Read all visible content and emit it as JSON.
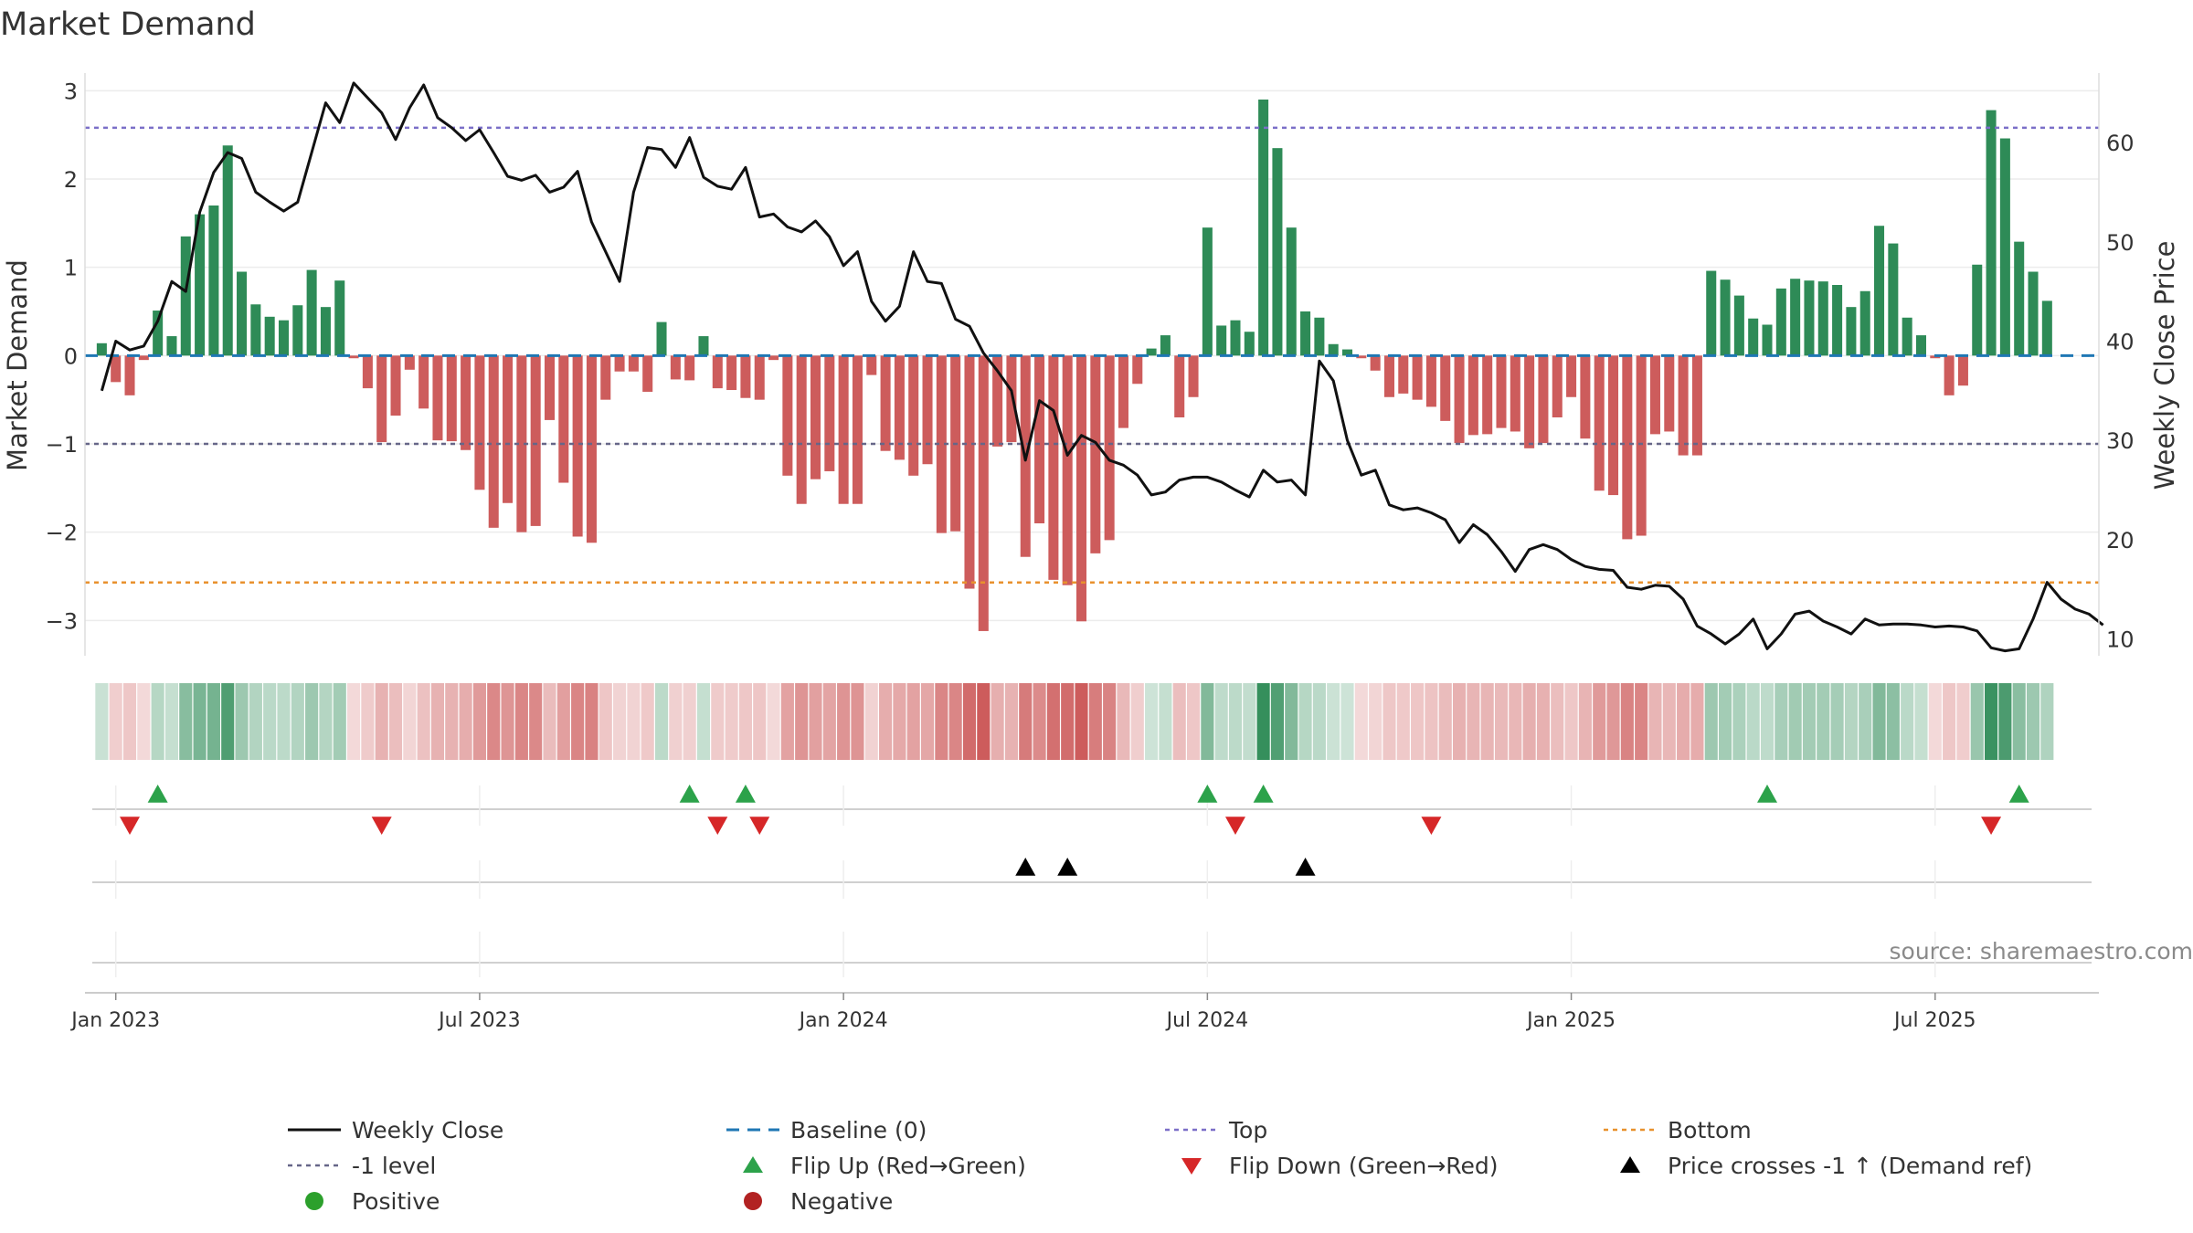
{
  "chart_data": {
    "type": "bar",
    "title": "Market Demand",
    "ylabel_left": "Market Demand",
    "ylabel_right": "Weekly Close Price",
    "ylim_left": [
      -3.4,
      3.2
    ],
    "ylim_right": [
      8.3,
      67
    ],
    "yticks_left": [
      {
        "v": 3,
        "label": "3"
      },
      {
        "v": 2,
        "label": "2"
      },
      {
        "v": 1,
        "label": "1"
      },
      {
        "v": 0,
        "label": "0"
      },
      {
        "v": -1,
        "label": "−1"
      },
      {
        "v": -2,
        "label": "−2"
      },
      {
        "v": -3,
        "label": "−3"
      }
    ],
    "yticks_right": [
      {
        "v": 60,
        "label": "60"
      },
      {
        "v": 50,
        "label": "50"
      },
      {
        "v": 40,
        "label": "40"
      },
      {
        "v": 30,
        "label": "30"
      },
      {
        "v": 20,
        "label": "20"
      },
      {
        "v": 10,
        "label": "10"
      }
    ],
    "x_range_weeks": [
      -1.2,
      142.7
    ],
    "xticks": [
      {
        "w": 1,
        "label": "Jan 2023"
      },
      {
        "w": 27,
        "label": "Jul 2023"
      },
      {
        "w": 53,
        "label": "Jan 2024"
      },
      {
        "w": 79,
        "label": "Jul 2024"
      },
      {
        "w": 105,
        "label": "Jan 2025"
      },
      {
        "w": 131,
        "label": "Jul 2025"
      }
    ],
    "reference_levels": {
      "top": 2.58,
      "minus_one": -1.0,
      "bottom": -2.57,
      "baseline": 0
    },
    "colors": {
      "positive": "#2e8b57",
      "negative": "#cd5c5c",
      "close": "#111111",
      "baseline": "#1f77b4",
      "top": "#7b6fc8",
      "minus_one": "#666688",
      "bottom": "#e8912d",
      "flip_up": "#2ca24a",
      "flip_down": "#d62728",
      "cross": "#000000",
      "pos_dot": "#2ca02c",
      "neg_dot": "#b22222"
    },
    "demand": [
      0.14,
      -0.3,
      -0.45,
      -0.05,
      0.51,
      0.22,
      1.35,
      1.6,
      1.7,
      2.38,
      0.95,
      0.58,
      0.44,
      0.4,
      0.57,
      0.97,
      0.55,
      0.85,
      -0.03,
      -0.37,
      -0.98,
      -0.68,
      -0.16,
      -0.6,
      -0.96,
      -0.97,
      -1.07,
      -1.52,
      -1.95,
      -1.67,
      -2.0,
      -1.93,
      -0.73,
      -1.44,
      -2.05,
      -2.12,
      -0.5,
      -0.18,
      -0.18,
      -0.41,
      0.38,
      -0.27,
      -0.28,
      0.22,
      -0.37,
      -0.39,
      -0.48,
      -0.5,
      -0.05,
      -1.36,
      -1.68,
      -1.4,
      -1.31,
      -1.68,
      -1.68,
      -0.22,
      -1.08,
      -1.18,
      -1.36,
      -1.23,
      -2.01,
      -1.99,
      -2.64,
      -3.12,
      -1.03,
      -0.98,
      -2.28,
      -1.9,
      -2.54,
      -2.6,
      -3.01,
      -2.24,
      -2.09,
      -0.82,
      -0.32,
      0.08,
      0.23,
      -0.7,
      -0.47,
      1.45,
      0.34,
      0.4,
      0.27,
      2.9,
      2.35,
      1.45,
      0.5,
      0.43,
      0.13,
      0.07,
      -0.03,
      -0.17,
      -0.47,
      -0.43,
      -0.5,
      -0.58,
      -0.74,
      -0.99,
      -0.9,
      -0.89,
      -0.82,
      -0.86,
      -1.05,
      -0.99,
      -0.7,
      -0.47,
      -0.94,
      -1.53,
      -1.58,
      -2.08,
      -2.04,
      -0.89,
      -0.86,
      -1.13,
      -1.13,
      0.96,
      0.86,
      0.68,
      0.42,
      0.35,
      0.76,
      0.87,
      0.85,
      0.84,
      0.8,
      0.55,
      0.73,
      1.47,
      1.27,
      0.43,
      0.23,
      -0.03,
      -0.45,
      -0.34,
      1.03,
      2.78,
      2.46,
      1.29,
      0.95,
      0.62
    ],
    "close": [
      35.0,
      40.0,
      39.1,
      39.5,
      42.0,
      46.0,
      45.0,
      53.0,
      57.0,
      59.0,
      58.4,
      55.0,
      54.0,
      53.1,
      54.0,
      59.0,
      64.0,
      62.0,
      66.0,
      64.5,
      63.0,
      60.3,
      63.5,
      65.8,
      62.5,
      61.5,
      60.2,
      61.3,
      59.0,
      56.6,
      56.2,
      56.7,
      55.0,
      55.5,
      57.1,
      52.0,
      49.0,
      46.0,
      55.0,
      59.5,
      59.3,
      57.5,
      60.5,
      56.5,
      55.6,
      55.3,
      57.5,
      52.5,
      52.8,
      51.5,
      51.0,
      52.1,
      50.5,
      47.6,
      49.0,
      44.0,
      42.0,
      43.5,
      49.0,
      46.0,
      45.8,
      42.2,
      41.5,
      38.8,
      37.0,
      35.0,
      28.0,
      34.0,
      33.0,
      28.5,
      30.5,
      29.8,
      28.0,
      27.5,
      26.5,
      24.5,
      24.8,
      26.0,
      26.3,
      26.3,
      25.8,
      25.0,
      24.3,
      27.0,
      25.8,
      26.0,
      24.5,
      38.0,
      36.0,
      30.0,
      26.5,
      27.0,
      23.5,
      23.0,
      23.2,
      22.7,
      22.0,
      19.7,
      21.5,
      20.5,
      18.8,
      16.8,
      19.0,
      19.5,
      19.0,
      18.0,
      17.3,
      17.0,
      16.9,
      15.2,
      15.0,
      15.4,
      15.3,
      14.0,
      11.3,
      10.5,
      9.5,
      10.5,
      12.0,
      9.0,
      10.5,
      12.5,
      12.8,
      11.8,
      11.2,
      10.5,
      12.0,
      11.4,
      11.5,
      11.5,
      11.4,
      11.2,
      11.3,
      11.2,
      10.8,
      9.1,
      8.8,
      9.0,
      12.0,
      15.7,
      14.0,
      13.0,
      12.5,
      11.4
    ],
    "heat_strip_note": "tile per week, colour intensity follows demand",
    "flip_up_weeks": [
      4,
      42,
      46,
      79,
      83,
      119,
      137
    ],
    "flip_down_weeks": [
      2,
      20,
      44,
      47,
      81,
      95,
      135
    ],
    "cross_weeks": [
      66,
      69,
      86
    ],
    "source": "source: sharemaestro.com",
    "legend": [
      {
        "key": "close",
        "label": "Weekly Close"
      },
      {
        "key": "baseline",
        "label": "Baseline (0)"
      },
      {
        "key": "top",
        "label": "Top"
      },
      {
        "key": "bottom",
        "label": "Bottom"
      },
      {
        "key": "minus_one",
        "label": "-1 level"
      },
      {
        "key": "flip_up",
        "label": "Flip Up (Red→Green)"
      },
      {
        "key": "flip_down",
        "label": "Flip Down (Green→Red)"
      },
      {
        "key": "cross",
        "label": "Price crosses -1 ↑ (Demand ref)"
      },
      {
        "key": "pos_dot",
        "label": "Positive"
      },
      {
        "key": "neg_dot",
        "label": "Negative"
      }
    ]
  }
}
